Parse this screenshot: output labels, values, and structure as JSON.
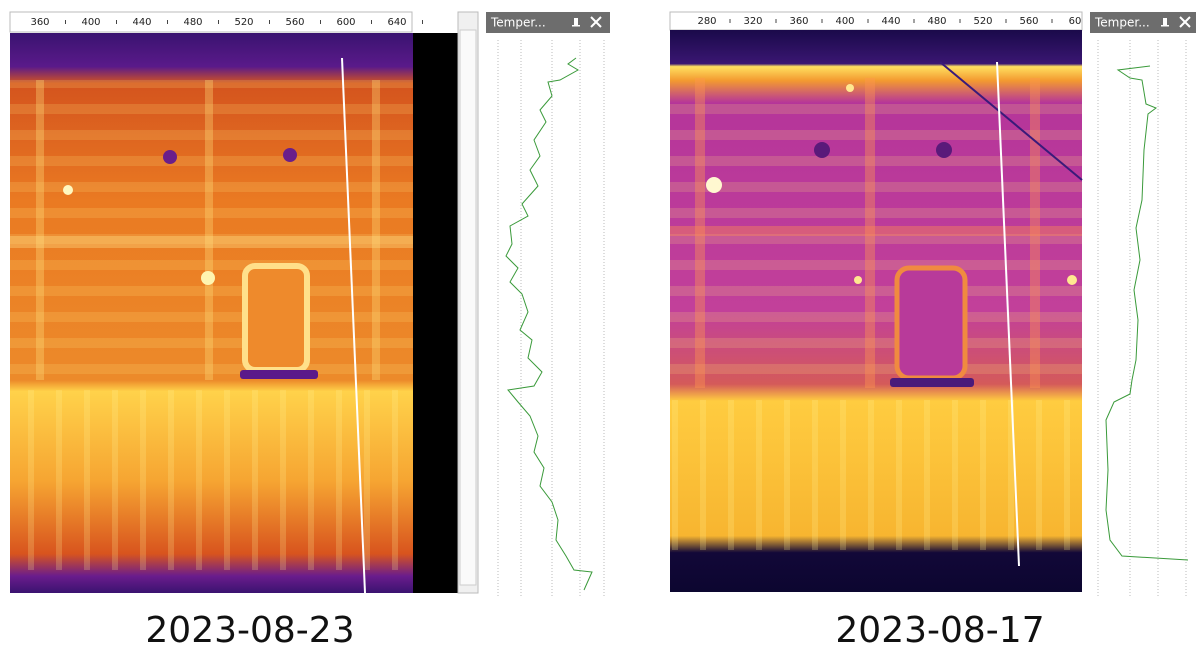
{
  "panels": [
    {
      "ruler": [
        "360",
        "400",
        "440",
        "480",
        "520",
        "560",
        "600",
        "640"
      ],
      "profile_title": "Temper...",
      "caption": "2023-08-23"
    },
    {
      "ruler": [
        "280",
        "320",
        "360",
        "400",
        "440",
        "480",
        "520",
        "560",
        "60"
      ],
      "profile_title": "Temper...",
      "caption": "2023-08-17"
    }
  ]
}
